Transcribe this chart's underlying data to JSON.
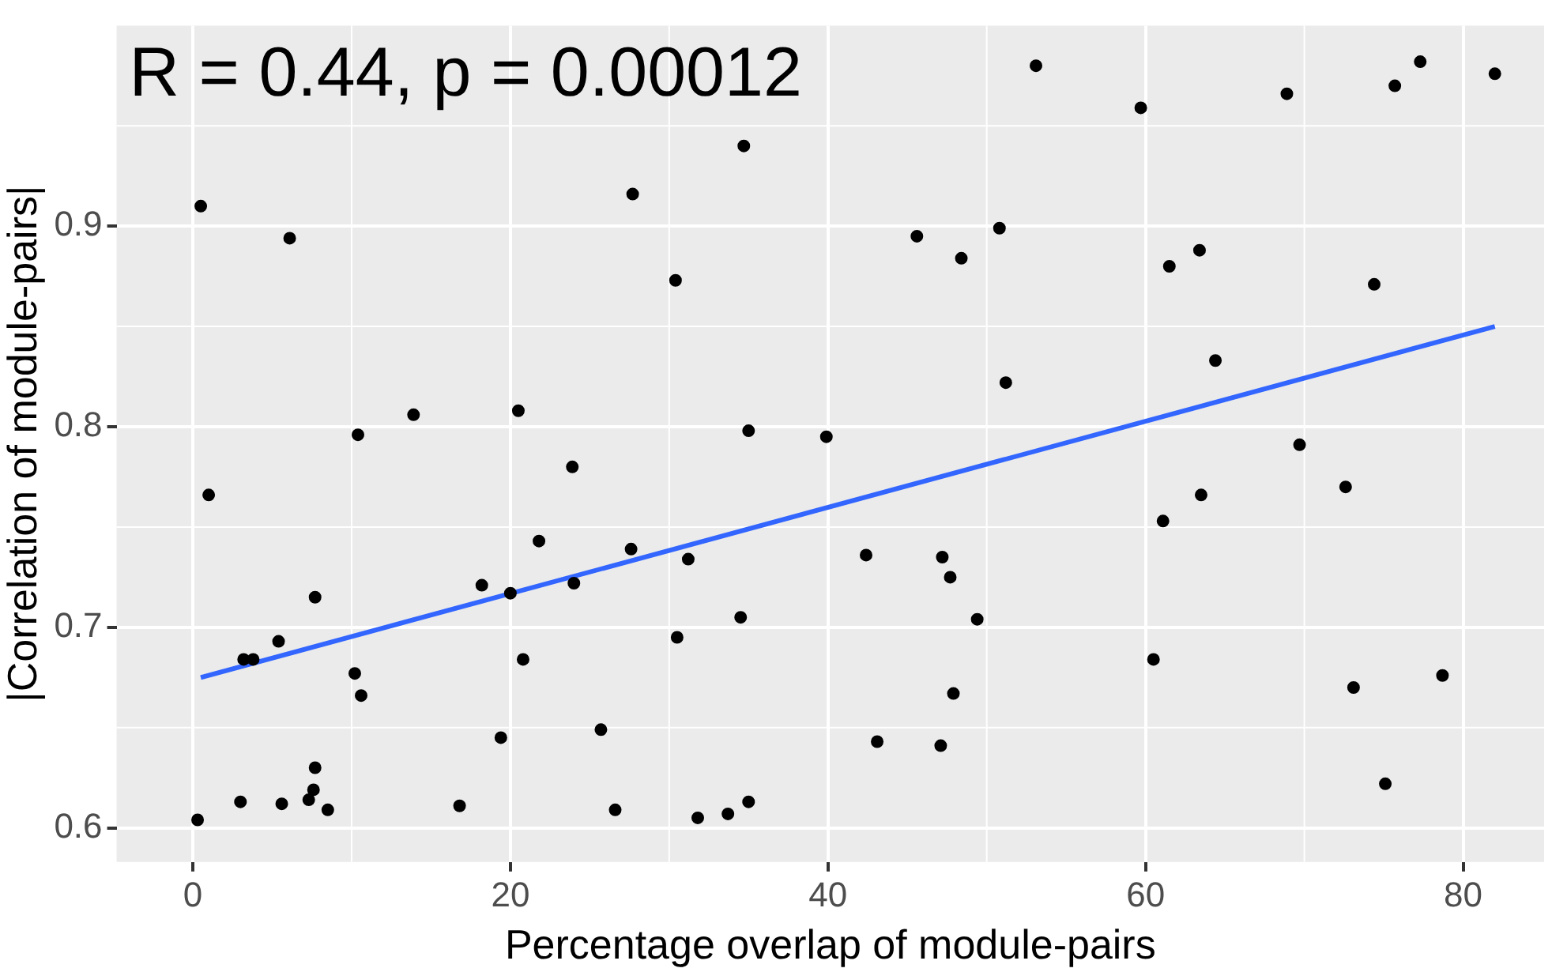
{
  "chart_data": {
    "type": "scatter",
    "xlabel": "Percentage overlap of module-pairs",
    "ylabel": "|Correlation of module-pairs|",
    "annotations": [
      "R = 0.44, p = 0.00012"
    ],
    "xlim": [
      -4.8,
      85.1
    ],
    "xticks": [
      0,
      20,
      40,
      60,
      80
    ],
    "ylim": [
      0.583,
      1.0
    ],
    "yticks": [
      0.6,
      0.7,
      0.8,
      0.9
    ],
    "grid": true,
    "legend": false,
    "marker": "circle",
    "series": [
      {
        "type": "scatter",
        "color": "#000000",
        "x": [
          0.5,
          1.0,
          0.3,
          3.0,
          3.2,
          3.8,
          5.4,
          5.6,
          6.1,
          7.3,
          7.6,
          7.7,
          7.7,
          8.5,
          10.2,
          10.4,
          10.6,
          13.9,
          16.8,
          18.2,
          19.4,
          20.0,
          20.5,
          20.8,
          21.8,
          23.9,
          24.0,
          25.7,
          26.6,
          27.6,
          27.7,
          30.4,
          30.5,
          31.2,
          31.8,
          33.7,
          34.5,
          34.7,
          35.0,
          35.0,
          39.9,
          42.4,
          43.1,
          45.6,
          47.1,
          47.2,
          47.7,
          47.9,
          48.4,
          49.4,
          50.8,
          51.2,
          53.1,
          59.7,
          60.5,
          61.1,
          61.5,
          63.4,
          63.5,
          64.4,
          68.9,
          69.7,
          72.6,
          73.1,
          74.4,
          75.1,
          75.7,
          77.3,
          78.7,
          82.0
        ],
        "values": [
          0.91,
          0.766,
          0.604,
          0.613,
          0.684,
          0.684,
          0.693,
          0.612,
          0.894,
          0.614,
          0.619,
          0.63,
          0.715,
          0.609,
          0.677,
          0.796,
          0.666,
          0.806,
          0.611,
          0.721,
          0.645,
          0.717,
          0.808,
          0.684,
          0.743,
          0.78,
          0.722,
          0.649,
          0.609,
          0.739,
          0.916,
          0.873,
          0.695,
          0.734,
          0.605,
          0.607,
          0.705,
          0.94,
          0.798,
          0.613,
          0.795,
          0.736,
          0.643,
          0.895,
          0.641,
          0.735,
          0.725,
          0.667,
          0.884,
          0.704,
          0.899,
          0.822,
          0.98,
          0.959,
          0.684,
          0.753,
          0.88,
          0.888,
          0.766,
          0.833,
          0.966,
          0.791,
          0.77,
          0.67,
          0.871,
          0.622,
          0.97,
          0.982,
          0.676,
          0.976
        ]
      },
      {
        "type": "line",
        "marker": "none",
        "color": "#3366ff",
        "x": [
          0.5,
          82.0
        ],
        "values": [
          0.675,
          0.85
        ]
      }
    ]
  }
}
